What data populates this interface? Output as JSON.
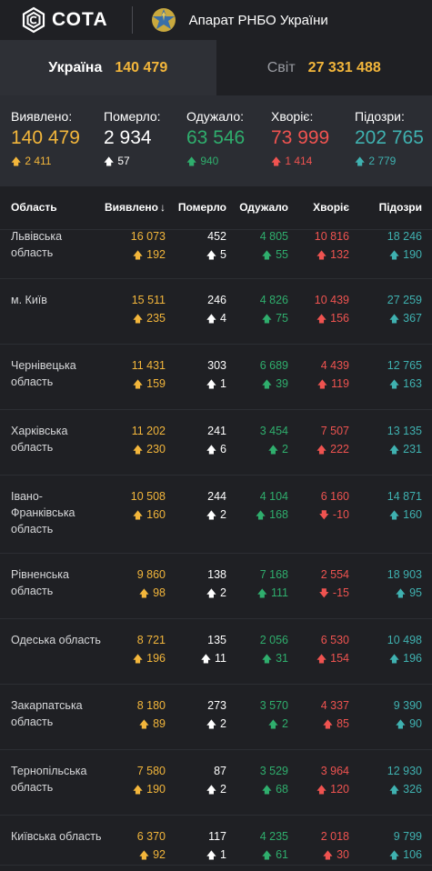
{
  "header": {
    "logo_text": "СОТА",
    "org_name": "Апарат РНБО України"
  },
  "scope": {
    "ukraine": {
      "label": "Україна",
      "value": "140 479"
    },
    "world": {
      "label": "Світ",
      "value": "27 331 488"
    }
  },
  "summary": {
    "detected": {
      "label": "Виявлено:",
      "value": "140 479",
      "delta": "2 411"
    },
    "died": {
      "label": "Померло:",
      "value": "2 934",
      "delta": "57"
    },
    "recovered": {
      "label": "Одужало:",
      "value": "63 546",
      "delta": "940"
    },
    "sick": {
      "label": "Хворіє:",
      "value": "73 999",
      "delta": "1 414"
    },
    "suspected": {
      "label": "Підозри:",
      "value": "202 765",
      "delta": "2 779"
    }
  },
  "table": {
    "headers": {
      "region": "Область",
      "detected": "Виявлено",
      "sort_arrow": "↓",
      "died": "Померло",
      "recovered": "Одужало",
      "sick": "Хворіє",
      "suspected": "Підозри"
    },
    "rows": [
      {
        "region": "Львівська область",
        "detected": "16 073",
        "detected_d": "192",
        "died": "452",
        "died_d": "5",
        "recovered": "4 805",
        "recovered_d": "55",
        "sick": "10 816",
        "sick_d": "132",
        "sick_dir": "up",
        "suspected": "18 246",
        "suspected_d": "190"
      },
      {
        "region": "м. Київ",
        "detected": "15 511",
        "detected_d": "235",
        "died": "246",
        "died_d": "4",
        "recovered": "4 826",
        "recovered_d": "75",
        "sick": "10 439",
        "sick_d": "156",
        "sick_dir": "up",
        "suspected": "27 259",
        "suspected_d": "367"
      },
      {
        "region": "Чернівецька область",
        "detected": "11 431",
        "detected_d": "159",
        "died": "303",
        "died_d": "1",
        "recovered": "6 689",
        "recovered_d": "39",
        "sick": "4 439",
        "sick_d": "119",
        "sick_dir": "up",
        "suspected": "12 765",
        "suspected_d": "163"
      },
      {
        "region": "Харківська область",
        "detected": "11 202",
        "detected_d": "230",
        "died": "241",
        "died_d": "6",
        "recovered": "3 454",
        "recovered_d": "2",
        "sick": "7 507",
        "sick_d": "222",
        "sick_dir": "up",
        "suspected": "13 135",
        "suspected_d": "231"
      },
      {
        "region": "Івано-Франківська область",
        "detected": "10 508",
        "detected_d": "160",
        "died": "244",
        "died_d": "2",
        "recovered": "4 104",
        "recovered_d": "168",
        "sick": "6 160",
        "sick_d": "-10",
        "sick_dir": "down",
        "suspected": "14 871",
        "suspected_d": "160"
      },
      {
        "region": "Рівненська область",
        "detected": "9 860",
        "detected_d": "98",
        "died": "138",
        "died_d": "2",
        "recovered": "7 168",
        "recovered_d": "111",
        "sick": "2 554",
        "sick_d": "-15",
        "sick_dir": "down",
        "suspected": "18 903",
        "suspected_d": "95"
      },
      {
        "region": "Одеська область",
        "detected": "8 721",
        "detected_d": "196",
        "died": "135",
        "died_d": "11",
        "recovered": "2 056",
        "recovered_d": "31",
        "sick": "6 530",
        "sick_d": "154",
        "sick_dir": "up",
        "suspected": "10 498",
        "suspected_d": "196"
      },
      {
        "region": "Закарпатська область",
        "detected": "8 180",
        "detected_d": "89",
        "died": "273",
        "died_d": "2",
        "recovered": "3 570",
        "recovered_d": "2",
        "sick": "4 337",
        "sick_d": "85",
        "sick_dir": "up",
        "suspected": "9 390",
        "suspected_d": "90"
      },
      {
        "region": "Тернопільська область",
        "detected": "7 580",
        "detected_d": "190",
        "died": "87",
        "died_d": "2",
        "recovered": "3 529",
        "recovered_d": "68",
        "sick": "3 964",
        "sick_d": "120",
        "sick_dir": "up",
        "suspected": "12 930",
        "suspected_d": "326"
      },
      {
        "region": "Київська область",
        "detected": "6 370",
        "detected_d": "92",
        "died": "117",
        "died_d": "1",
        "recovered": "4 235",
        "recovered_d": "61",
        "sick": "2 018",
        "sick_d": "30",
        "sick_dir": "up",
        "suspected": "9 799",
        "suspected_d": "106"
      }
    ]
  },
  "colors": {
    "detected": "#f3b63b",
    "died": "#ffffff",
    "recovered": "#2fae6d",
    "sick": "#ef5350",
    "suspected": "#3fb1b0"
  }
}
